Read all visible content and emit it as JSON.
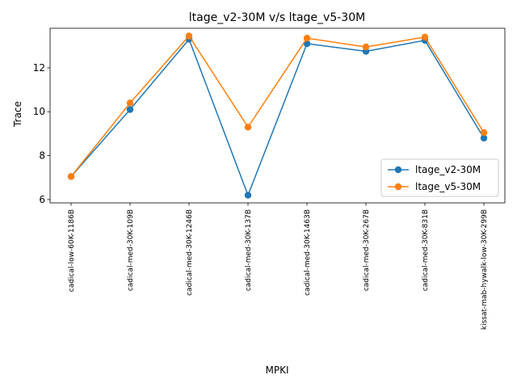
{
  "chart_data": {
    "type": "line",
    "title": "ltage_v2-30M v/s ltage_v5-30M",
    "xlabel": "MPKI",
    "ylabel": "Trace",
    "categories": [
      "cadical-low-60K-1186B",
      "cadical-med-30K-109B",
      "cadical-med-30K-1246B",
      "cadical-med-30K-137B",
      "cadical-med-30K-1463B",
      "cadical-med-30K-267B",
      "cadical-med-30K-831B",
      "kissat-mab-hywalk-low-30K-299B"
    ],
    "series": [
      {
        "name": "ltage_v2-30M",
        "color": "#1f77b4",
        "values": [
          7.05,
          10.1,
          13.3,
          6.2,
          13.1,
          12.75,
          13.25,
          8.8
        ]
      },
      {
        "name": "ltage_v5-30M",
        "color": "#ff7f0e",
        "values": [
          7.05,
          10.4,
          13.45,
          9.3,
          13.35,
          12.95,
          13.4,
          9.05
        ]
      }
    ],
    "ylim": [
      5.85,
      13.8
    ],
    "yticks": [
      6,
      8,
      10,
      12
    ],
    "grid": false,
    "legend_position": "lower-right"
  }
}
